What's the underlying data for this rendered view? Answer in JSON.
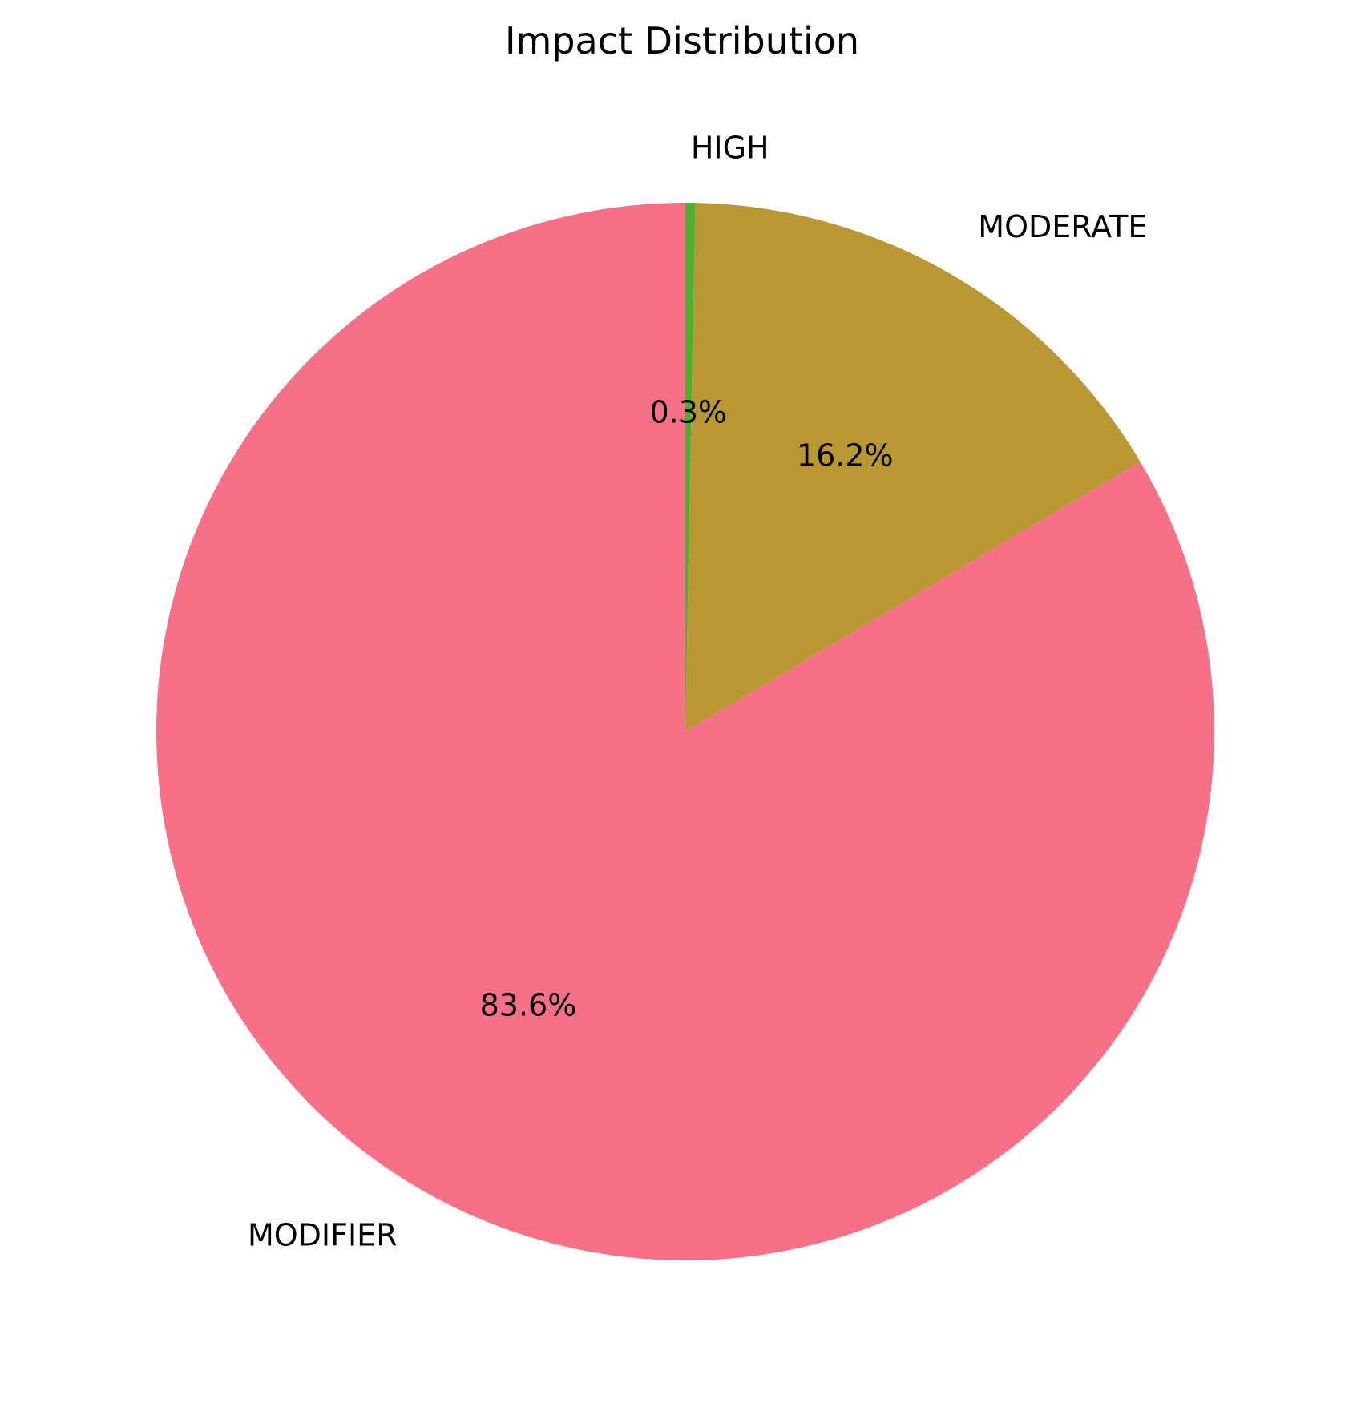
{
  "chart_data": {
    "type": "pie",
    "title": "Impact Distribution",
    "start_angle_deg": 90,
    "direction": "clockwise",
    "slices": [
      {
        "label": "HIGH",
        "value": 0.3,
        "pct_label": "0.3%",
        "color": "#4daf2f"
      },
      {
        "label": "MODERATE",
        "value": 16.2,
        "pct_label": "16.2%",
        "color": "#b99733"
      },
      {
        "label": "MODIFIER",
        "value": 83.6,
        "pct_label": "83.6%",
        "color": "#f67188"
      }
    ]
  }
}
